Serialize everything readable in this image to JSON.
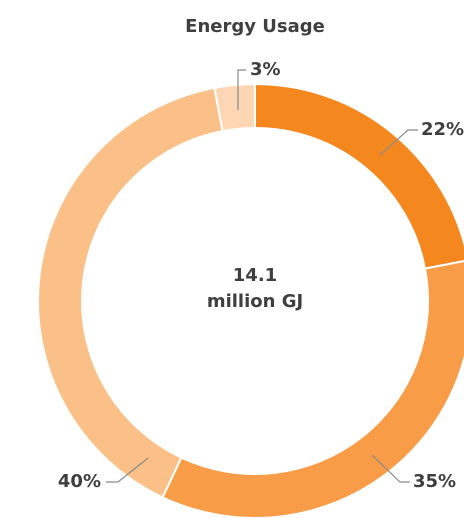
{
  "chart_data": {
    "type": "donut",
    "title": "Energy Usage",
    "center_text": [
      "14.1",
      "million GJ"
    ],
    "values": [
      22,
      35,
      40,
      3
    ],
    "value_labels": [
      "22%",
      "35%",
      "40%",
      "3%"
    ],
    "colors": [
      "#f5871f",
      "#f89c48",
      "#fbbf88",
      "#fdd7b4"
    ]
  }
}
